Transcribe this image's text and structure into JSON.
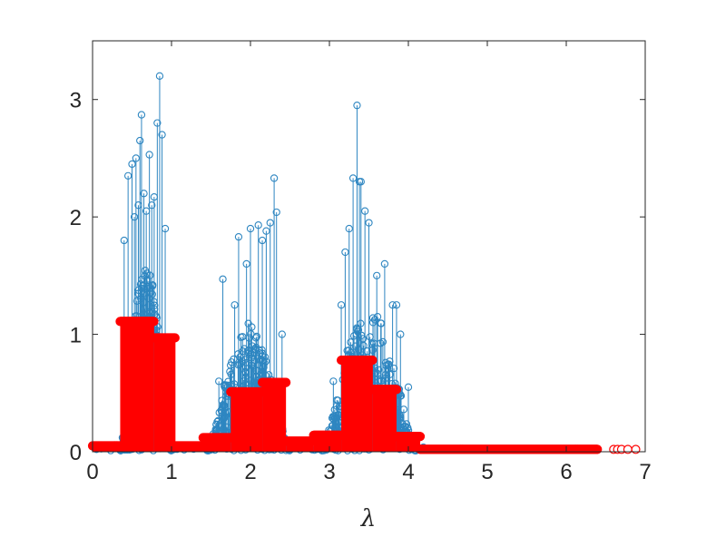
{
  "chart_data": {
    "type": "stem",
    "title": "",
    "xlabel": "λ",
    "ylabel": "",
    "xlim": [
      0,
      7
    ],
    "ylim": [
      0,
      3.5
    ],
    "xticks": [
      "0",
      "1",
      "2",
      "3",
      "4",
      "5",
      "6",
      "7"
    ],
    "yticks": [
      "0",
      "1",
      "2",
      "3"
    ],
    "grid": false,
    "legend": "none",
    "colors": {
      "blue": "#2E86C1",
      "red": "#FF0000",
      "axis": "#262626"
    },
    "blue_stem_peaks": [
      [
        0.4,
        1.8
      ],
      [
        0.45,
        2.35
      ],
      [
        0.5,
        2.45
      ],
      [
        0.53,
        2.0
      ],
      [
        0.55,
        2.5
      ],
      [
        0.58,
        2.1
      ],
      [
        0.6,
        2.65
      ],
      [
        0.62,
        2.87
      ],
      [
        0.65,
        2.2
      ],
      [
        0.68,
        2.05
      ],
      [
        0.72,
        2.53
      ],
      [
        0.75,
        2.1
      ],
      [
        0.78,
        2.17
      ],
      [
        0.82,
        2.8
      ],
      [
        0.85,
        3.2
      ],
      [
        0.88,
        2.7
      ],
      [
        0.92,
        1.9
      ],
      [
        1.6,
        0.6
      ],
      [
        1.65,
        1.47
      ],
      [
        1.8,
        1.25
      ],
      [
        1.85,
        1.83
      ],
      [
        1.95,
        1.6
      ],
      [
        2.0,
        1.9
      ],
      [
        2.1,
        1.93
      ],
      [
        2.15,
        1.8
      ],
      [
        2.2,
        1.88
      ],
      [
        2.25,
        1.95
      ],
      [
        2.3,
        2.33
      ],
      [
        2.33,
        2.04
      ],
      [
        2.4,
        1.0
      ],
      [
        3.05,
        0.6
      ],
      [
        3.15,
        1.25
      ],
      [
        3.2,
        1.7
      ],
      [
        3.25,
        1.9
      ],
      [
        3.3,
        2.33
      ],
      [
        3.35,
        2.95
      ],
      [
        3.38,
        2.3
      ],
      [
        3.4,
        2.3
      ],
      [
        3.45,
        2.05
      ],
      [
        3.5,
        1.95
      ],
      [
        3.6,
        1.5
      ],
      [
        3.7,
        1.6
      ],
      [
        3.8,
        1.25
      ],
      [
        3.85,
        1.25
      ],
      [
        3.9,
        1.0
      ],
      [
        4.0,
        0.55
      ]
    ],
    "red_steps": [
      {
        "x_start": 0.0,
        "x_end": 0.35,
        "value": 0.05
      },
      {
        "x_start": 0.35,
        "x_end": 0.78,
        "value": 1.11
      },
      {
        "x_start": 0.78,
        "x_end": 1.05,
        "value": 0.97
      },
      {
        "x_start": 1.05,
        "x_end": 1.4,
        "value": 0.05
      },
      {
        "x_start": 1.4,
        "x_end": 1.75,
        "value": 0.12
      },
      {
        "x_start": 1.75,
        "x_end": 2.15,
        "value": 0.51
      },
      {
        "x_start": 2.15,
        "x_end": 2.45,
        "value": 0.59
      },
      {
        "x_start": 2.45,
        "x_end": 2.8,
        "value": 0.09
      },
      {
        "x_start": 2.8,
        "x_end": 3.15,
        "value": 0.14
      },
      {
        "x_start": 3.15,
        "x_end": 3.55,
        "value": 0.78
      },
      {
        "x_start": 3.55,
        "x_end": 3.85,
        "value": 0.53
      },
      {
        "x_start": 3.85,
        "x_end": 4.15,
        "value": 0.13
      },
      {
        "x_start": 4.15,
        "x_end": 6.4,
        "value": 0.02
      }
    ],
    "red_sparse_points": [
      6.6,
      6.65,
      6.7,
      6.78,
      6.88
    ]
  }
}
